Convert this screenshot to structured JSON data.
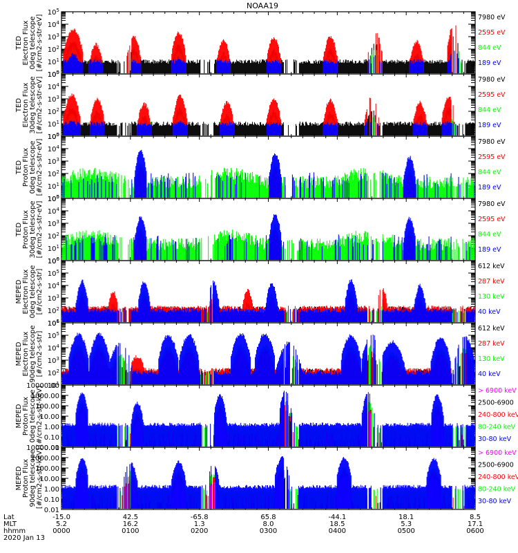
{
  "title": "NOAA19",
  "colors": {
    "black": "#000000",
    "red": "#ff0000",
    "green": "#00ff00",
    "blue": "#0000ff",
    "magenta": "#ff00ff"
  },
  "chart_data": [
    {
      "type": "line",
      "name": "ted-electron-0deg",
      "ylabel_lines": [
        "TED",
        "Electron Flux",
        "0deg telescope",
        "[#/cm2-s-str-eV]"
      ],
      "yscale": "log",
      "ylim": [
        1,
        100000
      ],
      "yticks": [
        "10^0",
        "10^1",
        "10^2",
        "10^3",
        "10^4",
        "10^5"
      ],
      "legend": [
        {
          "label": "7980 eV",
          "color": "#000000"
        },
        {
          "label": "2595 eV",
          "color": "#ff0000"
        },
        {
          "label": "844 eV",
          "color": "#00ff00"
        },
        {
          "label": "189 eV",
          "color": "#0000ff"
        }
      ],
      "bursts": [
        {
          "t": 0.17,
          "w": 0.08,
          "peak": 3.6,
          "color": "red"
        },
        {
          "t": 0.5,
          "w": 0.06,
          "peak": 2.4,
          "color": "red"
        },
        {
          "t": 1.05,
          "w": 0.06,
          "peak": 3.0,
          "color": "red"
        },
        {
          "t": 1.7,
          "w": 0.06,
          "peak": 3.3,
          "color": "red"
        },
        {
          "t": 2.35,
          "w": 0.06,
          "peak": 2.7,
          "color": "red"
        },
        {
          "t": 3.08,
          "w": 0.06,
          "peak": 2.9,
          "color": "red"
        },
        {
          "t": 3.9,
          "w": 0.06,
          "peak": 3.0,
          "color": "red"
        },
        {
          "t": 4.55,
          "w": 0.06,
          "peak": 3.4,
          "color": "red"
        },
        {
          "t": 5.15,
          "w": 0.06,
          "peak": 2.6,
          "color": "red"
        },
        {
          "t": 5.7,
          "w": 0.06,
          "peak": 4.0,
          "color": "red"
        }
      ]
    },
    {
      "type": "line",
      "name": "ted-electron-30deg",
      "ylabel_lines": [
        "TED",
        "Electron Flux",
        "30deg telescope",
        "[#/cm2-s-str-eV]"
      ],
      "yscale": "log",
      "ylim": [
        1,
        100000
      ],
      "yticks": [
        "10^0",
        "10^1",
        "10^2",
        "10^3",
        "10^4",
        "10^5"
      ],
      "legend": [
        {
          "label": "7980 eV",
          "color": "#000000"
        },
        {
          "label": "2595 eV",
          "color": "#ff0000"
        },
        {
          "label": "844 eV",
          "color": "#00ff00"
        },
        {
          "label": "189 eV",
          "color": "#0000ff"
        }
      ],
      "bursts": [
        {
          "t": 0.15,
          "w": 0.07,
          "peak": 3.3,
          "color": "red"
        },
        {
          "t": 0.52,
          "w": 0.06,
          "peak": 3.0,
          "color": "red"
        },
        {
          "t": 1.2,
          "w": 0.06,
          "peak": 2.6,
          "color": "red"
        },
        {
          "t": 1.72,
          "w": 0.06,
          "peak": 3.2,
          "color": "red"
        },
        {
          "t": 2.4,
          "w": 0.06,
          "peak": 2.7,
          "color": "red"
        },
        {
          "t": 3.08,
          "w": 0.06,
          "peak": 3.0,
          "color": "red"
        },
        {
          "t": 3.9,
          "w": 0.06,
          "peak": 2.9,
          "color": "red"
        },
        {
          "t": 4.5,
          "w": 0.06,
          "peak": 3.1,
          "color": "red"
        },
        {
          "t": 5.2,
          "w": 0.06,
          "peak": 2.7,
          "color": "red"
        },
        {
          "t": 5.62,
          "w": 0.06,
          "peak": 3.2,
          "color": "red"
        }
      ]
    },
    {
      "type": "line",
      "name": "ted-proton-0deg",
      "ylabel_lines": [
        "TED",
        "Proton Flux",
        "0deg telescope",
        "[#/cm2-s-str-eV]"
      ],
      "yscale": "log",
      "ylim": [
        1,
        100000
      ],
      "yticks": [
        "10^0",
        "10^1",
        "10^2",
        "10^3",
        "10^4",
        "10^5"
      ],
      "legend": [
        {
          "label": "7980 eV",
          "color": "#000000"
        },
        {
          "label": "2595 eV",
          "color": "#ff0000"
        },
        {
          "label": "844 eV",
          "color": "#00ff00"
        },
        {
          "label": "189 eV",
          "color": "#0000ff"
        }
      ],
      "bursts": [
        {
          "t": 1.15,
          "w": 0.05,
          "peak": 3.8,
          "color": "blue"
        },
        {
          "t": 3.1,
          "w": 0.05,
          "peak": 3.6,
          "color": "blue"
        },
        {
          "t": 5.05,
          "w": 0.05,
          "peak": 3.3,
          "color": "blue"
        }
      ]
    },
    {
      "type": "line",
      "name": "ted-proton-30deg",
      "ylabel_lines": [
        "TED",
        "Proton Flux",
        "30deg telescope",
        "[#/cm2-s-str-eV]"
      ],
      "yscale": "log",
      "ylim": [
        1,
        100000
      ],
      "yticks": [
        "10^0",
        "10^1",
        "10^2",
        "10^3",
        "10^4",
        "10^5"
      ],
      "legend": [
        {
          "label": "7980 eV",
          "color": "#000000"
        },
        {
          "label": "2595 eV",
          "color": "#ff0000"
        },
        {
          "label": "844 eV",
          "color": "#00ff00"
        },
        {
          "label": "189 eV",
          "color": "#0000ff"
        }
      ],
      "bursts": [
        {
          "t": 1.15,
          "w": 0.05,
          "peak": 3.5,
          "color": "blue"
        },
        {
          "t": 3.1,
          "w": 0.05,
          "peak": 3.7,
          "color": "blue"
        },
        {
          "t": 5.05,
          "w": 0.05,
          "peak": 3.4,
          "color": "blue"
        }
      ]
    },
    {
      "type": "line",
      "name": "meped-electron-0deg",
      "ylabel_lines": [
        "MEPED",
        "Electron Flux",
        "0deg telescope",
        "[#/cm2-s-str]"
      ],
      "yscale": "log",
      "ylim": [
        10,
        1000000
      ],
      "yticks": [
        "10^1",
        "10^2",
        "10^3",
        "10^4",
        "10^5",
        "10^6"
      ],
      "legend": [
        {
          "label": "612 keV",
          "color": "#000000"
        },
        {
          "label": "287 keV",
          "color": "#ff0000"
        },
        {
          "label": "130 keV",
          "color": "#00ff00"
        },
        {
          "label": "40 keV",
          "color": "#0000ff"
        }
      ],
      "bursts": [
        {
          "t": 0.3,
          "w": 0.05,
          "peak": 4.4,
          "color": "blue"
        },
        {
          "t": 0.75,
          "w": 0.05,
          "peak": 3.5,
          "color": "red"
        },
        {
          "t": 1.2,
          "w": 0.05,
          "peak": 4.3,
          "color": "blue"
        },
        {
          "t": 2.2,
          "w": 0.05,
          "peak": 4.3,
          "color": "blue"
        },
        {
          "t": 2.7,
          "w": 0.05,
          "peak": 3.6,
          "color": "red"
        },
        {
          "t": 3.05,
          "w": 0.05,
          "peak": 4.2,
          "color": "blue"
        },
        {
          "t": 4.2,
          "w": 0.05,
          "peak": 4.4,
          "color": "blue"
        },
        {
          "t": 4.65,
          "w": 0.05,
          "peak": 3.8,
          "color": "red"
        },
        {
          "t": 5.2,
          "w": 0.05,
          "peak": 4.0,
          "color": "blue"
        }
      ]
    },
    {
      "type": "line",
      "name": "meped-electron-90deg",
      "ylabel_lines": [
        "MEPED",
        "Electron Flux",
        "90deg telescope",
        "[#/cm2-s-str]"
      ],
      "yscale": "log",
      "ylim": [
        10,
        1000000
      ],
      "yticks": [
        "10^1",
        "10^2",
        "10^3",
        "10^4",
        "10^5",
        "10^6"
      ],
      "legend": [
        {
          "label": "612 keV",
          "color": "#000000"
        },
        {
          "label": "287 keV",
          "color": "#ff0000"
        },
        {
          "label": "130 keV",
          "color": "#00ff00"
        },
        {
          "label": "40 keV",
          "color": "#0000ff"
        }
      ],
      "bursts": [
        {
          "t": 0.25,
          "w": 0.08,
          "peak": 5.1,
          "color": "blue"
        },
        {
          "t": 0.55,
          "w": 0.08,
          "peak": 5.1,
          "color": "blue"
        },
        {
          "t": 0.85,
          "w": 0.1,
          "peak": 4.3,
          "color": "blue"
        },
        {
          "t": 1.1,
          "w": 0.08,
          "peak": 3.3,
          "color": "red"
        },
        {
          "t": 1.55,
          "w": 0.08,
          "peak": 5.0,
          "color": "blue"
        },
        {
          "t": 1.85,
          "w": 0.08,
          "peak": 5.0,
          "color": "blue"
        },
        {
          "t": 2.6,
          "w": 0.08,
          "peak": 5.1,
          "color": "blue"
        },
        {
          "t": 2.95,
          "w": 0.08,
          "peak": 5.1,
          "color": "blue"
        },
        {
          "t": 3.3,
          "w": 0.1,
          "peak": 4.4,
          "color": "blue"
        },
        {
          "t": 4.2,
          "w": 0.08,
          "peak": 5.0,
          "color": "blue"
        },
        {
          "t": 4.5,
          "w": 0.08,
          "peak": 5.0,
          "color": "blue"
        },
        {
          "t": 4.8,
          "w": 0.1,
          "peak": 4.5,
          "color": "blue"
        },
        {
          "t": 5.5,
          "w": 0.08,
          "peak": 4.8,
          "color": "blue"
        },
        {
          "t": 5.85,
          "w": 0.08,
          "peak": 4.9,
          "color": "blue"
        }
      ]
    },
    {
      "type": "line",
      "name": "meped-proton-0deg",
      "ylabel_lines": [
        "MEPED",
        "Proton Flux",
        "0deg telescope",
        "[#/cm2-s-str-keV]"
      ],
      "yscale": "log",
      "ylim": [
        0.01,
        10000
      ],
      "yticks": [
        "0.01",
        "0.10",
        "1.00",
        "10.00",
        "100.00",
        "1000.00",
        "10000.00"
      ],
      "legend": [
        {
          "label": "> 6900 keV",
          "color": "#ff00ff"
        },
        {
          "label": "2500-6900",
          "color": "#000000"
        },
        {
          "label": "240-800 keV",
          "color": "#ff0000"
        },
        {
          "label": "80-240 keV",
          "color": "#00ff00"
        },
        {
          "label": "30-80 keV",
          "color": "#0000ff"
        }
      ],
      "bursts": [
        {
          "t": 0.3,
          "w": 0.05,
          "peak": 3.2,
          "color": "blue"
        },
        {
          "t": 1.1,
          "w": 0.05,
          "peak": 2.3,
          "color": "blue"
        },
        {
          "t": 2.3,
          "w": 0.05,
          "peak": 3.0,
          "color": "blue"
        },
        {
          "t": 3.25,
          "w": 0.05,
          "peak": 3.4,
          "color": "blue"
        },
        {
          "t": 4.45,
          "w": 0.05,
          "peak": 3.2,
          "color": "blue"
        },
        {
          "t": 5.45,
          "w": 0.05,
          "peak": 3.0,
          "color": "blue"
        }
      ]
    },
    {
      "type": "line",
      "name": "meped-proton-90deg",
      "ylabel_lines": [
        "MEPED",
        "Proton Flux",
        "90deg telescope",
        "[#/cm2-s-str-keV]"
      ],
      "yscale": "log",
      "ylim": [
        0.01,
        10000
      ],
      "yticks": [
        "0.01",
        "0.10",
        "1.00",
        "10.00",
        "100.00",
        "1000.00",
        "10000.00"
      ],
      "legend": [
        {
          "label": "> 6900 keV",
          "color": "#ff00ff"
        },
        {
          "label": "2500-6900",
          "color": "#000000"
        },
        {
          "label": "240-800 keV",
          "color": "#ff0000"
        },
        {
          "label": "80-240 keV",
          "color": "#00ff00"
        },
        {
          "label": "30-80 keV",
          "color": "#0000ff"
        }
      ],
      "bursts": [
        {
          "t": 0.3,
          "w": 0.05,
          "peak": 3.0,
          "color": "blue"
        },
        {
          "t": 1.0,
          "w": 0.06,
          "peak": 2.5,
          "color": "blue"
        },
        {
          "t": 1.7,
          "w": 0.06,
          "peak": 2.6,
          "color": "blue"
        },
        {
          "t": 2.2,
          "w": 0.05,
          "peak": 2.4,
          "color": "blue"
        },
        {
          "t": 3.2,
          "w": 0.06,
          "peak": 3.0,
          "color": "blue"
        },
        {
          "t": 4.1,
          "w": 0.06,
          "peak": 3.0,
          "color": "blue"
        },
        {
          "t": 5.4,
          "w": 0.06,
          "peak": 2.9,
          "color": "blue"
        }
      ]
    }
  ],
  "xaxis": {
    "row_labels": [
      "Lat",
      "MLT",
      "hhmm"
    ],
    "date": "2020 Jan 13",
    "ticks": [
      {
        "lat": "-15.0",
        "mlt": "5.2",
        "hhmm": "0000"
      },
      {
        "lat": "42.5",
        "mlt": "16.2",
        "hhmm": "0100"
      },
      {
        "lat": "-65.8",
        "mlt": "1.3",
        "hhmm": "0200"
      },
      {
        "lat": "65.8",
        "mlt": "8.0",
        "hhmm": "0300"
      },
      {
        "lat": "-44.1",
        "mlt": "18.5",
        "hhmm": "0400"
      },
      {
        "lat": "18.1",
        "mlt": "5.3",
        "hhmm": "0500"
      },
      {
        "lat": "8.5",
        "mlt": "17.1",
        "hhmm": "0600"
      }
    ],
    "xlim_hours": [
      0,
      6
    ]
  }
}
